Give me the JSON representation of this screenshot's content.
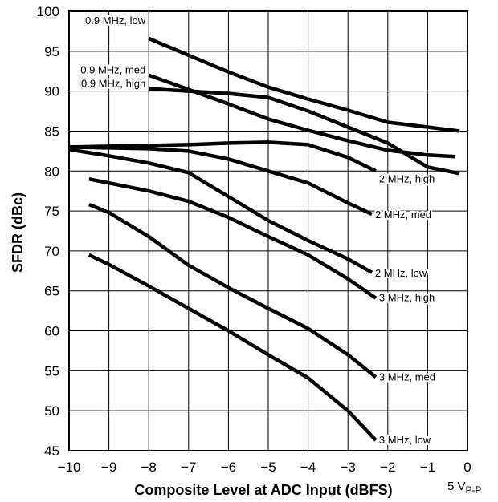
{
  "chart_data": {
    "type": "line",
    "title": "",
    "xlabel": "Composite Level at ADC Input (dBFS)",
    "ylabel": "SFDR (dBc)",
    "xlim": [
      -10,
      0
    ],
    "ylim": [
      45,
      100
    ],
    "x_ticks": [
      "−10",
      "−9",
      "−8",
      "−7",
      "−6",
      "−5",
      "−4",
      "−3",
      "−2",
      "−1",
      "0"
    ],
    "y_ticks": [
      "100",
      "95",
      "90",
      "85",
      "80",
      "75",
      "70",
      "65",
      "60",
      "55",
      "50",
      "45"
    ],
    "unit_note": {
      "main": "5 V",
      "sub": "P-P"
    },
    "grid": true,
    "line_color": "#000000",
    "series": [
      {
        "name": "0.9 MHz, low",
        "x": [
          -8,
          -7,
          -6,
          -5,
          -4,
          -3,
          -2,
          -1,
          -0.2
        ],
        "y": [
          96.6,
          94.5,
          92.4,
          90.5,
          89.0,
          87.6,
          86.1,
          85.5,
          85.0
        ]
      },
      {
        "name": "0.9 MHz, med",
        "x": [
          -8,
          -7,
          -6,
          -5,
          -4,
          -3,
          -2,
          -1,
          -0.3
        ],
        "y": [
          92.0,
          90.2,
          88.4,
          86.5,
          85.1,
          83.8,
          82.6,
          82.0,
          81.8
        ]
      },
      {
        "name": "0.9 MHz, high",
        "x": [
          -8,
          -7,
          -6,
          -5,
          -4,
          -3,
          -2,
          -1,
          -0.2
        ],
        "y": [
          90.3,
          90.0,
          89.7,
          89.2,
          87.5,
          85.5,
          83.5,
          80.5,
          79.7
        ]
      },
      {
        "name": "2 MHz, high",
        "x": [
          -10,
          -9,
          -8,
          -7,
          -6,
          -5,
          -4,
          -3,
          -2.3
        ],
        "y": [
          83.0,
          83.1,
          83.2,
          83.3,
          83.5,
          83.6,
          83.3,
          81.7,
          80.0
        ]
      },
      {
        "name": "2 MHz, med",
        "x": [
          -10,
          -9,
          -8,
          -7,
          -6,
          -5,
          -4,
          -3,
          -2.4
        ],
        "y": [
          83.0,
          82.9,
          82.8,
          82.5,
          81.5,
          80.0,
          78.5,
          76.0,
          74.6
        ]
      },
      {
        "name": "2 MHz, low",
        "x": [
          -10,
          -9,
          -8,
          -7,
          -6,
          -5,
          -4,
          -3,
          -2.4
        ],
        "y": [
          82.7,
          81.9,
          81.0,
          79.8,
          76.8,
          73.8,
          71.3,
          69.0,
          67.3
        ]
      },
      {
        "name": "3 MHz, high",
        "x": [
          -9.5,
          -8,
          -7,
          -6,
          -5,
          -4,
          -3,
          -2.3
        ],
        "y": [
          79.0,
          77.5,
          76.2,
          74.2,
          71.8,
          69.5,
          66.5,
          64.1
        ]
      },
      {
        "name": "3 MHz, med",
        "x": [
          -9.5,
          -9,
          -8,
          -7,
          -6,
          -5,
          -4,
          -3,
          -2.3
        ],
        "y": [
          75.8,
          74.8,
          71.8,
          68.2,
          65.4,
          62.8,
          60.3,
          57.0,
          54.2
        ]
      },
      {
        "name": "3 MHz, low",
        "x": [
          -9.5,
          -9,
          -8,
          -7,
          -6,
          -5,
          -4,
          -3,
          -2.3
        ],
        "y": [
          69.5,
          68.3,
          65.6,
          62.8,
          60.0,
          57.0,
          54.1,
          50.0,
          46.3
        ]
      }
    ]
  }
}
